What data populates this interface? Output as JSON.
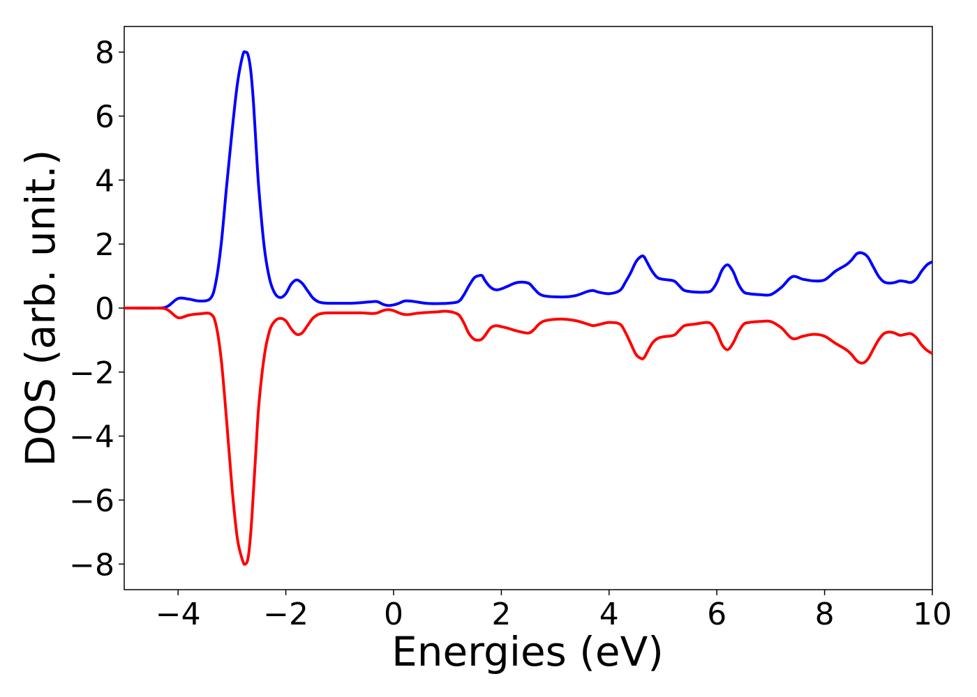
{
  "chart_data": {
    "type": "line",
    "title": "",
    "xlabel": "Energies (eV)",
    "ylabel": "DOS (arb. unit.)",
    "xlim": [
      -5,
      10
    ],
    "ylim": [
      -8.8,
      8.8
    ],
    "x_ticks": [
      -4,
      -2,
      0,
      2,
      4,
      6,
      8,
      10
    ],
    "x_tick_labels": [
      "−4",
      "−2",
      "0",
      "2",
      "4",
      "6",
      "8",
      "10"
    ],
    "y_ticks": [
      -8,
      -6,
      -4,
      -2,
      0,
      2,
      4,
      6,
      8
    ],
    "y_tick_labels": [
      "−8",
      "−6",
      "−4",
      "−2",
      "0",
      "2",
      "4",
      "6",
      "8"
    ],
    "grid": false,
    "legend": "none",
    "series": [
      {
        "color": "#0000ff",
        "x": [
          -5.0,
          -4.4,
          -4.2,
          -4.0,
          -3.8,
          -3.6,
          -3.4,
          -3.3,
          -3.2,
          -3.1,
          -3.0,
          -2.9,
          -2.8,
          -2.75,
          -2.7,
          -2.65,
          -2.6,
          -2.55,
          -2.5,
          -2.4,
          -2.3,
          -2.2,
          -2.1,
          -2.0,
          -1.9,
          -1.8,
          -1.7,
          -1.6,
          -1.5,
          -1.4,
          -1.3,
          -1.2,
          -1.0,
          -0.8,
          -0.6,
          -0.4,
          -0.3,
          -0.2,
          -0.1,
          0.0,
          0.1,
          0.2,
          0.3,
          0.4,
          0.6,
          0.8,
          1.0,
          1.2,
          1.3,
          1.4,
          1.5,
          1.6,
          1.65,
          1.7,
          1.8,
          1.9,
          2.0,
          2.1,
          2.3,
          2.5,
          2.6,
          2.7,
          2.8,
          3.0,
          3.2,
          3.4,
          3.6,
          3.7,
          3.8,
          4.0,
          4.2,
          4.3,
          4.4,
          4.5,
          4.6,
          4.65,
          4.7,
          4.8,
          4.9,
          5.0,
          5.2,
          5.3,
          5.4,
          5.6,
          5.8,
          5.9,
          6.0,
          6.1,
          6.2,
          6.3,
          6.4,
          6.5,
          6.6,
          6.8,
          7.0,
          7.2,
          7.4,
          7.6,
          7.8,
          8.0,
          8.2,
          8.4,
          8.5,
          8.6,
          8.7,
          8.8,
          8.9,
          9.0,
          9.1,
          9.2,
          9.3,
          9.4,
          9.5,
          9.6,
          9.7,
          9.8,
          9.9,
          10.0
        ],
        "values": [
          0.0,
          0.0,
          0.05,
          0.3,
          0.28,
          0.22,
          0.3,
          0.8,
          2.0,
          3.8,
          5.5,
          7.0,
          7.9,
          8.0,
          7.9,
          7.4,
          6.4,
          5.0,
          3.7,
          1.9,
          0.9,
          0.45,
          0.33,
          0.45,
          0.75,
          0.88,
          0.78,
          0.55,
          0.32,
          0.2,
          0.16,
          0.15,
          0.15,
          0.15,
          0.17,
          0.2,
          0.2,
          0.12,
          0.08,
          0.1,
          0.15,
          0.22,
          0.22,
          0.2,
          0.15,
          0.14,
          0.15,
          0.2,
          0.4,
          0.7,
          0.95,
          1.02,
          1.0,
          0.85,
          0.65,
          0.57,
          0.6,
          0.67,
          0.8,
          0.78,
          0.62,
          0.45,
          0.38,
          0.35,
          0.35,
          0.4,
          0.52,
          0.55,
          0.5,
          0.45,
          0.55,
          0.8,
          1.1,
          1.45,
          1.62,
          1.6,
          1.45,
          1.15,
          0.95,
          0.9,
          0.85,
          0.7,
          0.55,
          0.5,
          0.5,
          0.55,
          0.8,
          1.2,
          1.35,
          1.15,
          0.75,
          0.5,
          0.45,
          0.42,
          0.42,
          0.65,
          0.98,
          0.9,
          0.85,
          0.88,
          1.15,
          1.35,
          1.5,
          1.7,
          1.72,
          1.6,
          1.3,
          1.0,
          0.82,
          0.78,
          0.8,
          0.85,
          0.83,
          0.8,
          0.9,
          1.15,
          1.35,
          1.45
        ]
      },
      {
        "color": "#ff0000",
        "x": [
          -5.0,
          -4.4,
          -4.2,
          -4.0,
          -3.8,
          -3.6,
          -3.4,
          -3.3,
          -3.2,
          -3.1,
          -3.0,
          -2.9,
          -2.8,
          -2.75,
          -2.7,
          -2.65,
          -2.6,
          -2.55,
          -2.5,
          -2.4,
          -2.3,
          -2.2,
          -2.1,
          -2.0,
          -1.9,
          -1.8,
          -1.7,
          -1.6,
          -1.5,
          -1.4,
          -1.3,
          -1.2,
          -1.0,
          -0.8,
          -0.6,
          -0.4,
          -0.3,
          -0.2,
          -0.1,
          0.0,
          0.1,
          0.2,
          0.3,
          0.4,
          0.6,
          0.8,
          1.0,
          1.2,
          1.3,
          1.4,
          1.5,
          1.6,
          1.65,
          1.7,
          1.8,
          1.9,
          2.0,
          2.1,
          2.3,
          2.5,
          2.6,
          2.7,
          2.8,
          3.0,
          3.2,
          3.4,
          3.6,
          3.7,
          3.8,
          4.0,
          4.2,
          4.3,
          4.4,
          4.5,
          4.6,
          4.65,
          4.7,
          4.8,
          4.9,
          5.0,
          5.2,
          5.3,
          5.4,
          5.6,
          5.8,
          5.9,
          6.0,
          6.1,
          6.2,
          6.3,
          6.4,
          6.5,
          6.6,
          6.8,
          7.0,
          7.2,
          7.4,
          7.6,
          7.8,
          8.0,
          8.2,
          8.4,
          8.5,
          8.6,
          8.7,
          8.8,
          8.9,
          9.0,
          9.1,
          9.2,
          9.3,
          9.4,
          9.5,
          9.6,
          9.7,
          9.8,
          9.9,
          10.0
        ],
        "values": [
          0.0,
          0.0,
          -0.05,
          -0.3,
          -0.22,
          -0.18,
          -0.18,
          -0.5,
          -1.6,
          -3.5,
          -5.6,
          -7.2,
          -7.9,
          -8.0,
          -7.8,
          -7.0,
          -5.7,
          -4.3,
          -3.0,
          -1.5,
          -0.7,
          -0.4,
          -0.32,
          -0.4,
          -0.65,
          -0.82,
          -0.78,
          -0.55,
          -0.32,
          -0.2,
          -0.16,
          -0.15,
          -0.15,
          -0.15,
          -0.15,
          -0.17,
          -0.15,
          -0.08,
          -0.05,
          -0.08,
          -0.15,
          -0.2,
          -0.2,
          -0.17,
          -0.14,
          -0.12,
          -0.1,
          -0.2,
          -0.45,
          -0.8,
          -0.98,
          -1.0,
          -0.95,
          -0.85,
          -0.62,
          -0.55,
          -0.58,
          -0.62,
          -0.72,
          -0.78,
          -0.68,
          -0.5,
          -0.4,
          -0.35,
          -0.35,
          -0.4,
          -0.5,
          -0.55,
          -0.52,
          -0.45,
          -0.5,
          -0.75,
          -1.1,
          -1.45,
          -1.58,
          -1.55,
          -1.4,
          -1.1,
          -0.95,
          -0.9,
          -0.85,
          -0.7,
          -0.55,
          -0.5,
          -0.45,
          -0.5,
          -0.75,
          -1.15,
          -1.3,
          -1.1,
          -0.75,
          -0.5,
          -0.45,
          -0.42,
          -0.42,
          -0.62,
          -0.95,
          -0.88,
          -0.82,
          -0.88,
          -1.1,
          -1.3,
          -1.45,
          -1.65,
          -1.72,
          -1.6,
          -1.3,
          -1.0,
          -0.8,
          -0.75,
          -0.78,
          -0.85,
          -0.82,
          -0.8,
          -0.92,
          -1.15,
          -1.32,
          -1.42
        ]
      }
    ]
  }
}
